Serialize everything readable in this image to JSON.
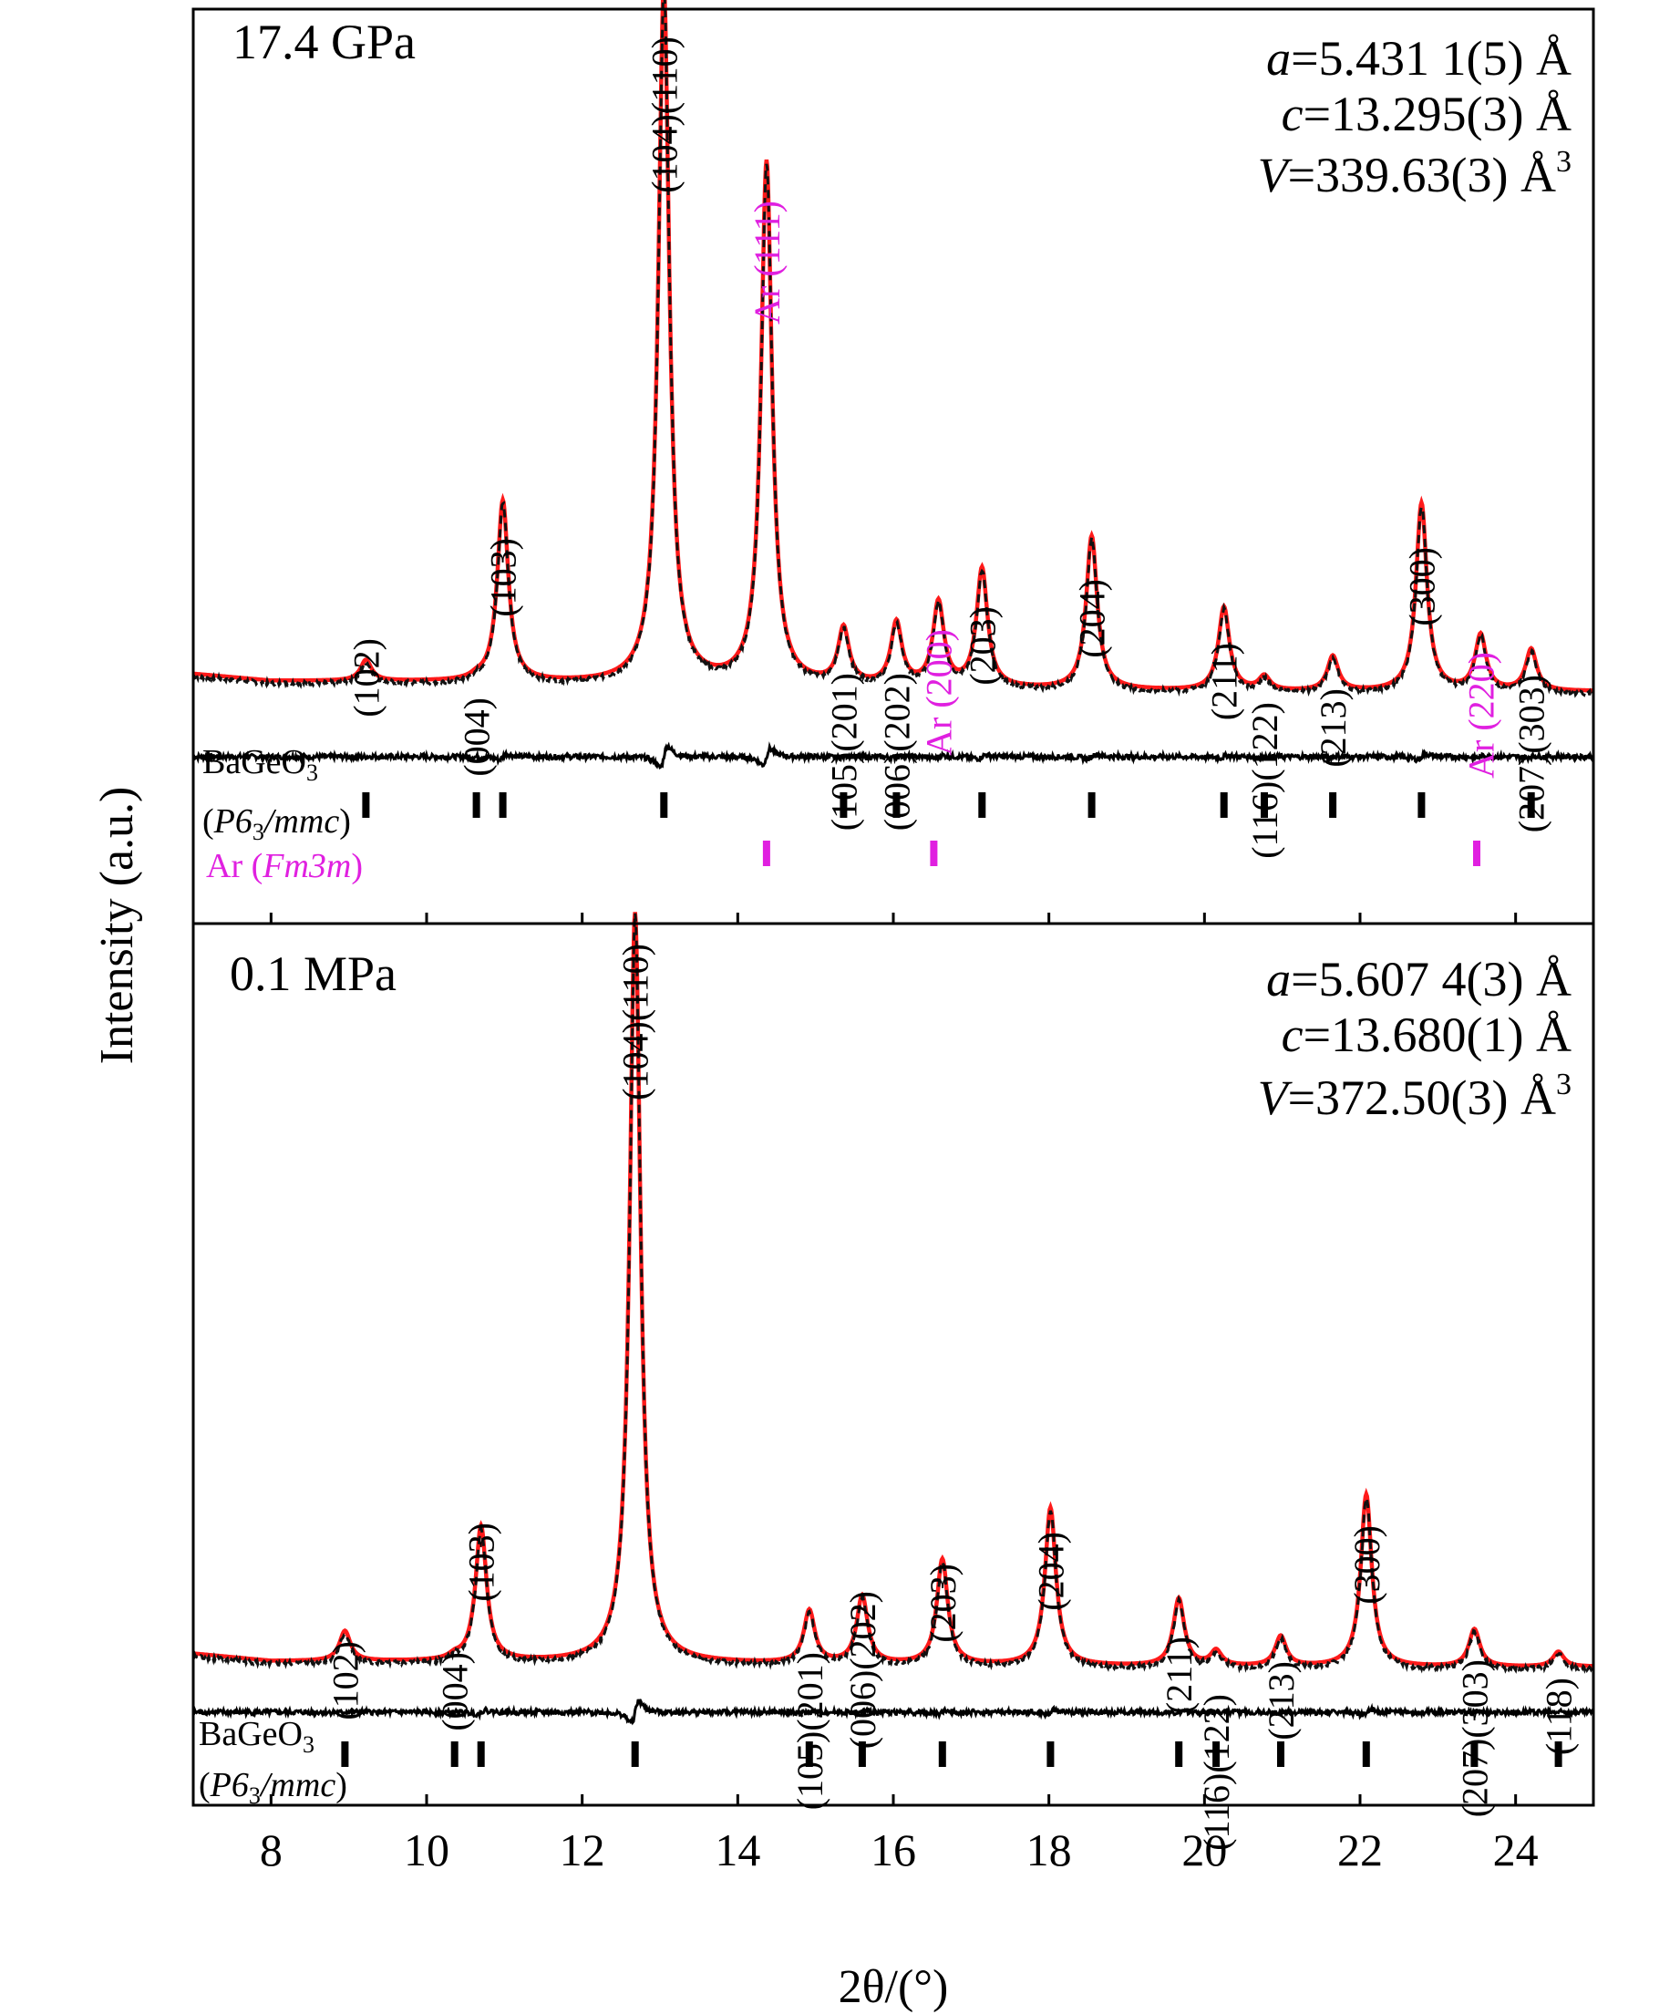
{
  "chart_data": [
    {
      "type": "line",
      "id": "high",
      "pressure": "17.4 GPa",
      "params": [
        {
          "sym": "a",
          "val": "=5.431 1(5) Å",
          "sup": ""
        },
        {
          "sym": "c",
          "val": "=13.295(3) Å",
          "sup": ""
        },
        {
          "sym": "V",
          "val": "=339.63(3) Å",
          "sup": "3"
        }
      ],
      "baseline": 0.08,
      "residual_offset": -0.04,
      "peaks": [
        {
          "x": 9.22,
          "h": 0.03,
          "label": "(102)",
          "color": "#000000"
        },
        {
          "x": 10.64,
          "h": 0.004,
          "label": "(004)",
          "color": "#000000"
        },
        {
          "x": 10.98,
          "h": 0.26,
          "label": "(103)",
          "color": "#000000"
        },
        {
          "x": 13.05,
          "h": 1.0,
          "label": "(104)(110)",
          "color": "#000000"
        },
        {
          "x": 14.37,
          "h": 0.75,
          "label": "Ar (111)",
          "color": "#e020e0"
        },
        {
          "x": 15.36,
          "h": 0.08,
          "label": "(105)(201)",
          "color": "#000000"
        },
        {
          "x": 16.04,
          "h": 0.09,
          "label": "(006)(202)",
          "color": "#000000"
        },
        {
          "x": 16.58,
          "h": 0.12,
          "label": "Ar (200)",
          "color": "#e020e0"
        },
        {
          "x": 17.14,
          "h": 0.17,
          "label": "(203)",
          "color": "#000000"
        },
        {
          "x": 18.55,
          "h": 0.22,
          "label": "(204)",
          "color": "#000000"
        },
        {
          "x": 20.25,
          "h": 0.12,
          "label": "(211)",
          "color": "#000000"
        },
        {
          "x": 20.77,
          "h": 0.02,
          "label": "(116)(122)",
          "color": "#000000"
        },
        {
          "x": 21.65,
          "h": 0.05,
          "label": "(213)",
          "color": "#000000"
        },
        {
          "x": 22.79,
          "h": 0.27,
          "label": "(300)",
          "color": "#000000"
        },
        {
          "x": 23.55,
          "h": 0.08,
          "label": "Ar (220)",
          "color": "#e020e0"
        },
        {
          "x": 24.2,
          "h": 0.06,
          "label": "(207)(303)",
          "color": "#000000"
        }
      ],
      "phases": [
        {
          "name": "BaGeO3",
          "group": "P63/mmc",
          "color": "#000000",
          "ticks": [
            9.22,
            10.64,
            10.98,
            13.05,
            15.36,
            16.04,
            17.14,
            18.55,
            20.25,
            20.77,
            21.65,
            22.79,
            24.2
          ]
        },
        {
          "name": "Ar",
          "group": "Fm3m",
          "color": "#e020e0",
          "ticks": [
            14.37,
            16.52,
            23.5
          ]
        }
      ]
    },
    {
      "type": "line",
      "id": "low",
      "pressure": "0.1 MPa",
      "params": [
        {
          "sym": "a",
          "val": "=5.607 4(3) Å",
          "sup": ""
        },
        {
          "sym": "c",
          "val": "=13.680(1) Å",
          "sup": ""
        },
        {
          "sym": "V",
          "val": "=372.50(3) Å",
          "sup": "3"
        }
      ],
      "baseline": 0.04,
      "residual_offset": -0.03,
      "peaks": [
        {
          "x": 8.95,
          "h": 0.04,
          "label": "(102)",
          "color": "#000000"
        },
        {
          "x": 10.36,
          "h": 0.005,
          "label": "(004)",
          "color": "#000000"
        },
        {
          "x": 10.7,
          "h": 0.18,
          "label": "(103)",
          "color": "#000000"
        },
        {
          "x": 12.68,
          "h": 1.0,
          "label": "(104)(110)",
          "color": "#000000"
        },
        {
          "x": 14.92,
          "h": 0.07,
          "label": "(105)(201)",
          "color": "#000000"
        },
        {
          "x": 15.6,
          "h": 0.09,
          "label": "(006)(202)",
          "color": "#000000"
        },
        {
          "x": 16.63,
          "h": 0.14,
          "label": "(203)",
          "color": "#000000"
        },
        {
          "x": 18.02,
          "h": 0.21,
          "label": "(204)",
          "color": "#000000"
        },
        {
          "x": 19.67,
          "h": 0.09,
          "label": "(211)",
          "color": "#000000"
        },
        {
          "x": 20.15,
          "h": 0.02,
          "label": "(116)(122)",
          "color": "#000000"
        },
        {
          "x": 20.98,
          "h": 0.04,
          "label": "(213)",
          "color": "#000000"
        },
        {
          "x": 22.08,
          "h": 0.23,
          "label": "(300)",
          "color": "#000000"
        },
        {
          "x": 23.47,
          "h": 0.05,
          "label": "(207)(303)",
          "color": "#000000"
        },
        {
          "x": 24.55,
          "h": 0.02,
          "label": "(118)",
          "color": "#000000"
        }
      ],
      "phases": [
        {
          "name": "BaGeO3",
          "group": "P63/mmc",
          "color": "#000000",
          "ticks": [
            8.95,
            10.36,
            10.7,
            12.68,
            14.92,
            15.6,
            16.63,
            18.02,
            19.67,
            20.15,
            20.98,
            22.08,
            23.47,
            24.55
          ]
        }
      ]
    }
  ],
  "axes": {
    "xlabel": "2θ/(°)",
    "ylabel": "Intensity (a.u.)",
    "xlim": [
      7,
      25
    ],
    "xticks": [
      8,
      10,
      12,
      14,
      16,
      18,
      20,
      22,
      24
    ]
  },
  "colors": {
    "calc": "#ff1a1a",
    "obs": "#111111",
    "diff": "#000000",
    "ar": "#e020e0"
  }
}
